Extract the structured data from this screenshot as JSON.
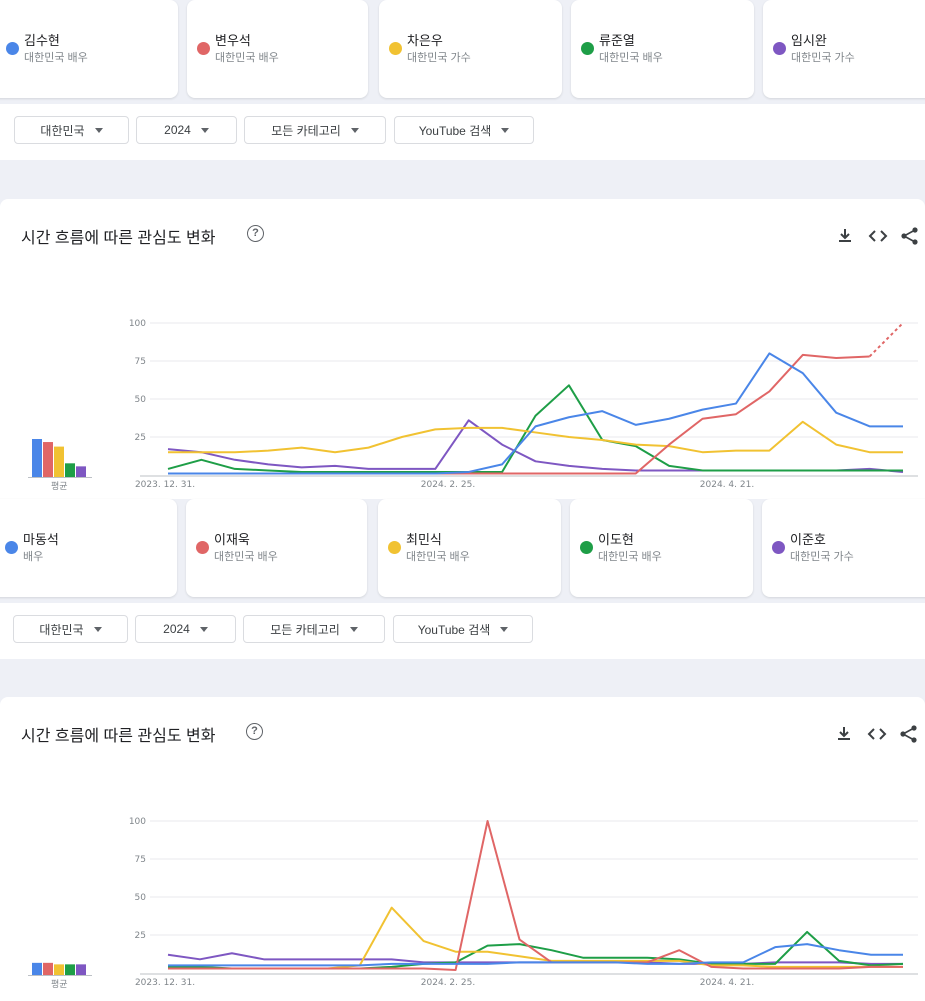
{
  "top": {
    "terms": [
      {
        "name": "김수현",
        "sub": "대한민국 배우",
        "color": "#4a86e8"
      },
      {
        "name": "변우석",
        "sub": "대한민국 배우",
        "color": "#e06666"
      },
      {
        "name": "차은우",
        "sub": "대한민국 가수",
        "color": "#f1c232"
      },
      {
        "name": "류준열",
        "sub": "대한민국 배우",
        "color": "#1e9e47"
      },
      {
        "name": "임시완",
        "sub": "대한민국 가수",
        "color": "#7e57c2"
      }
    ],
    "filters": [
      "대한민국",
      "2024",
      "모든 카테고리",
      "YouTube 검색"
    ],
    "panel_title": "시간 흐름에 따른 관심도 변화",
    "help": "?",
    "avg_label": "평균",
    "chart_data": {
      "type": "line",
      "y_ticks": [
        "100",
        "75",
        "50",
        "25"
      ],
      "ylim": [
        0,
        100
      ],
      "x_tick_labels": [
        "2023. 12. 31.",
        "2024. 2. 25.",
        "2024. 4. 21."
      ],
      "averages": [
        25,
        23,
        20,
        9,
        7
      ],
      "series": [
        {
          "name": "김수현",
          "color": "#4a86e8",
          "values": [
            1,
            1,
            1,
            1,
            1,
            1,
            1,
            1,
            1,
            2,
            7,
            32,
            38,
            42,
            33,
            37,
            43,
            47,
            80,
            67,
            41,
            32,
            32
          ]
        },
        {
          "name": "변우석",
          "color": "#e06666",
          "values": [
            1,
            1,
            1,
            1,
            1,
            1,
            1,
            1,
            1,
            1,
            1,
            1,
            1,
            1,
            1,
            20,
            37,
            40,
            55,
            79,
            77,
            78,
            100
          ]
        },
        {
          "name": "차은우",
          "color": "#f1c232",
          "values": [
            15,
            15,
            15,
            16,
            18,
            15,
            18,
            25,
            30,
            31,
            31,
            28,
            25,
            23,
            20,
            19,
            15,
            16,
            16,
            35,
            20,
            15,
            15
          ]
        },
        {
          "name": "류준열",
          "color": "#1e9e47",
          "values": [
            4,
            10,
            4,
            3,
            2,
            2,
            2,
            2,
            2,
            2,
            2,
            39,
            59,
            23,
            19,
            6,
            3,
            3,
            3,
            3,
            3,
            3,
            3
          ]
        },
        {
          "name": "임시완",
          "color": "#7e57c2",
          "values": [
            17,
            15,
            10,
            7,
            5,
            6,
            4,
            4,
            4,
            36,
            20,
            9,
            6,
            4,
            3,
            3,
            3,
            3,
            3,
            3,
            3,
            4,
            2
          ]
        }
      ]
    }
  },
  "bottom": {
    "terms": [
      {
        "name": "마동석",
        "sub": "배우",
        "color": "#4a86e8"
      },
      {
        "name": "이재욱",
        "sub": "대한민국 배우",
        "color": "#e06666"
      },
      {
        "name": "최민식",
        "sub": "대한민국 배우",
        "color": "#f1c232"
      },
      {
        "name": "이도현",
        "sub": "대한민국 배우",
        "color": "#1e9e47"
      },
      {
        "name": "이준호",
        "sub": "대한민국 가수",
        "color": "#7e57c2"
      }
    ],
    "filters": [
      "대한민국",
      "2024",
      "모든 카테고리",
      "YouTube 검색"
    ],
    "panel_title": "시간 흐름에 따른 관심도 변화",
    "help": "?",
    "avg_label": "평균",
    "chart_data": {
      "type": "line",
      "y_ticks": [
        "100",
        "75",
        "50",
        "25"
      ],
      "ylim": [
        0,
        100
      ],
      "x_tick_labels": [
        "2023. 12. 31.",
        "2024. 2. 25.",
        "2024. 4. 21."
      ],
      "averages": [
        8,
        8,
        7,
        7,
        7
      ],
      "series": [
        {
          "name": "마동석",
          "color": "#4a86e8",
          "values": [
            5,
            5,
            5,
            5,
            5,
            5,
            5,
            6,
            6,
            6,
            6,
            7,
            7,
            7,
            7,
            6,
            6,
            7,
            7,
            17,
            19,
            15,
            12,
            12
          ]
        },
        {
          "name": "이재욱",
          "color": "#e06666",
          "values": [
            3,
            3,
            3,
            3,
            3,
            3,
            3,
            3,
            3,
            2,
            100,
            22,
            7,
            7,
            7,
            7,
            15,
            4,
            3,
            3,
            3,
            3,
            4,
            4
          ]
        },
        {
          "name": "최민식",
          "color": "#f1c232",
          "values": [
            3,
            3,
            3,
            3,
            3,
            3,
            5,
            43,
            21,
            14,
            14,
            11,
            8,
            8,
            8,
            8,
            8,
            5,
            5,
            4,
            4,
            4,
            4,
            4
          ]
        },
        {
          "name": "이도현",
          "color": "#1e9e47",
          "values": [
            4,
            4,
            3,
            3,
            3,
            3,
            3,
            4,
            6,
            7,
            18,
            19,
            15,
            10,
            10,
            10,
            9,
            6,
            6,
            6,
            27,
            8,
            5,
            6
          ]
        },
        {
          "name": "이준호",
          "color": "#7e57c2",
          "values": [
            12,
            9,
            13,
            9,
            9,
            9,
            9,
            9,
            7,
            7,
            7,
            7,
            7,
            7,
            7,
            7,
            6,
            6,
            6,
            7,
            7,
            7,
            6,
            6
          ]
        }
      ]
    }
  }
}
